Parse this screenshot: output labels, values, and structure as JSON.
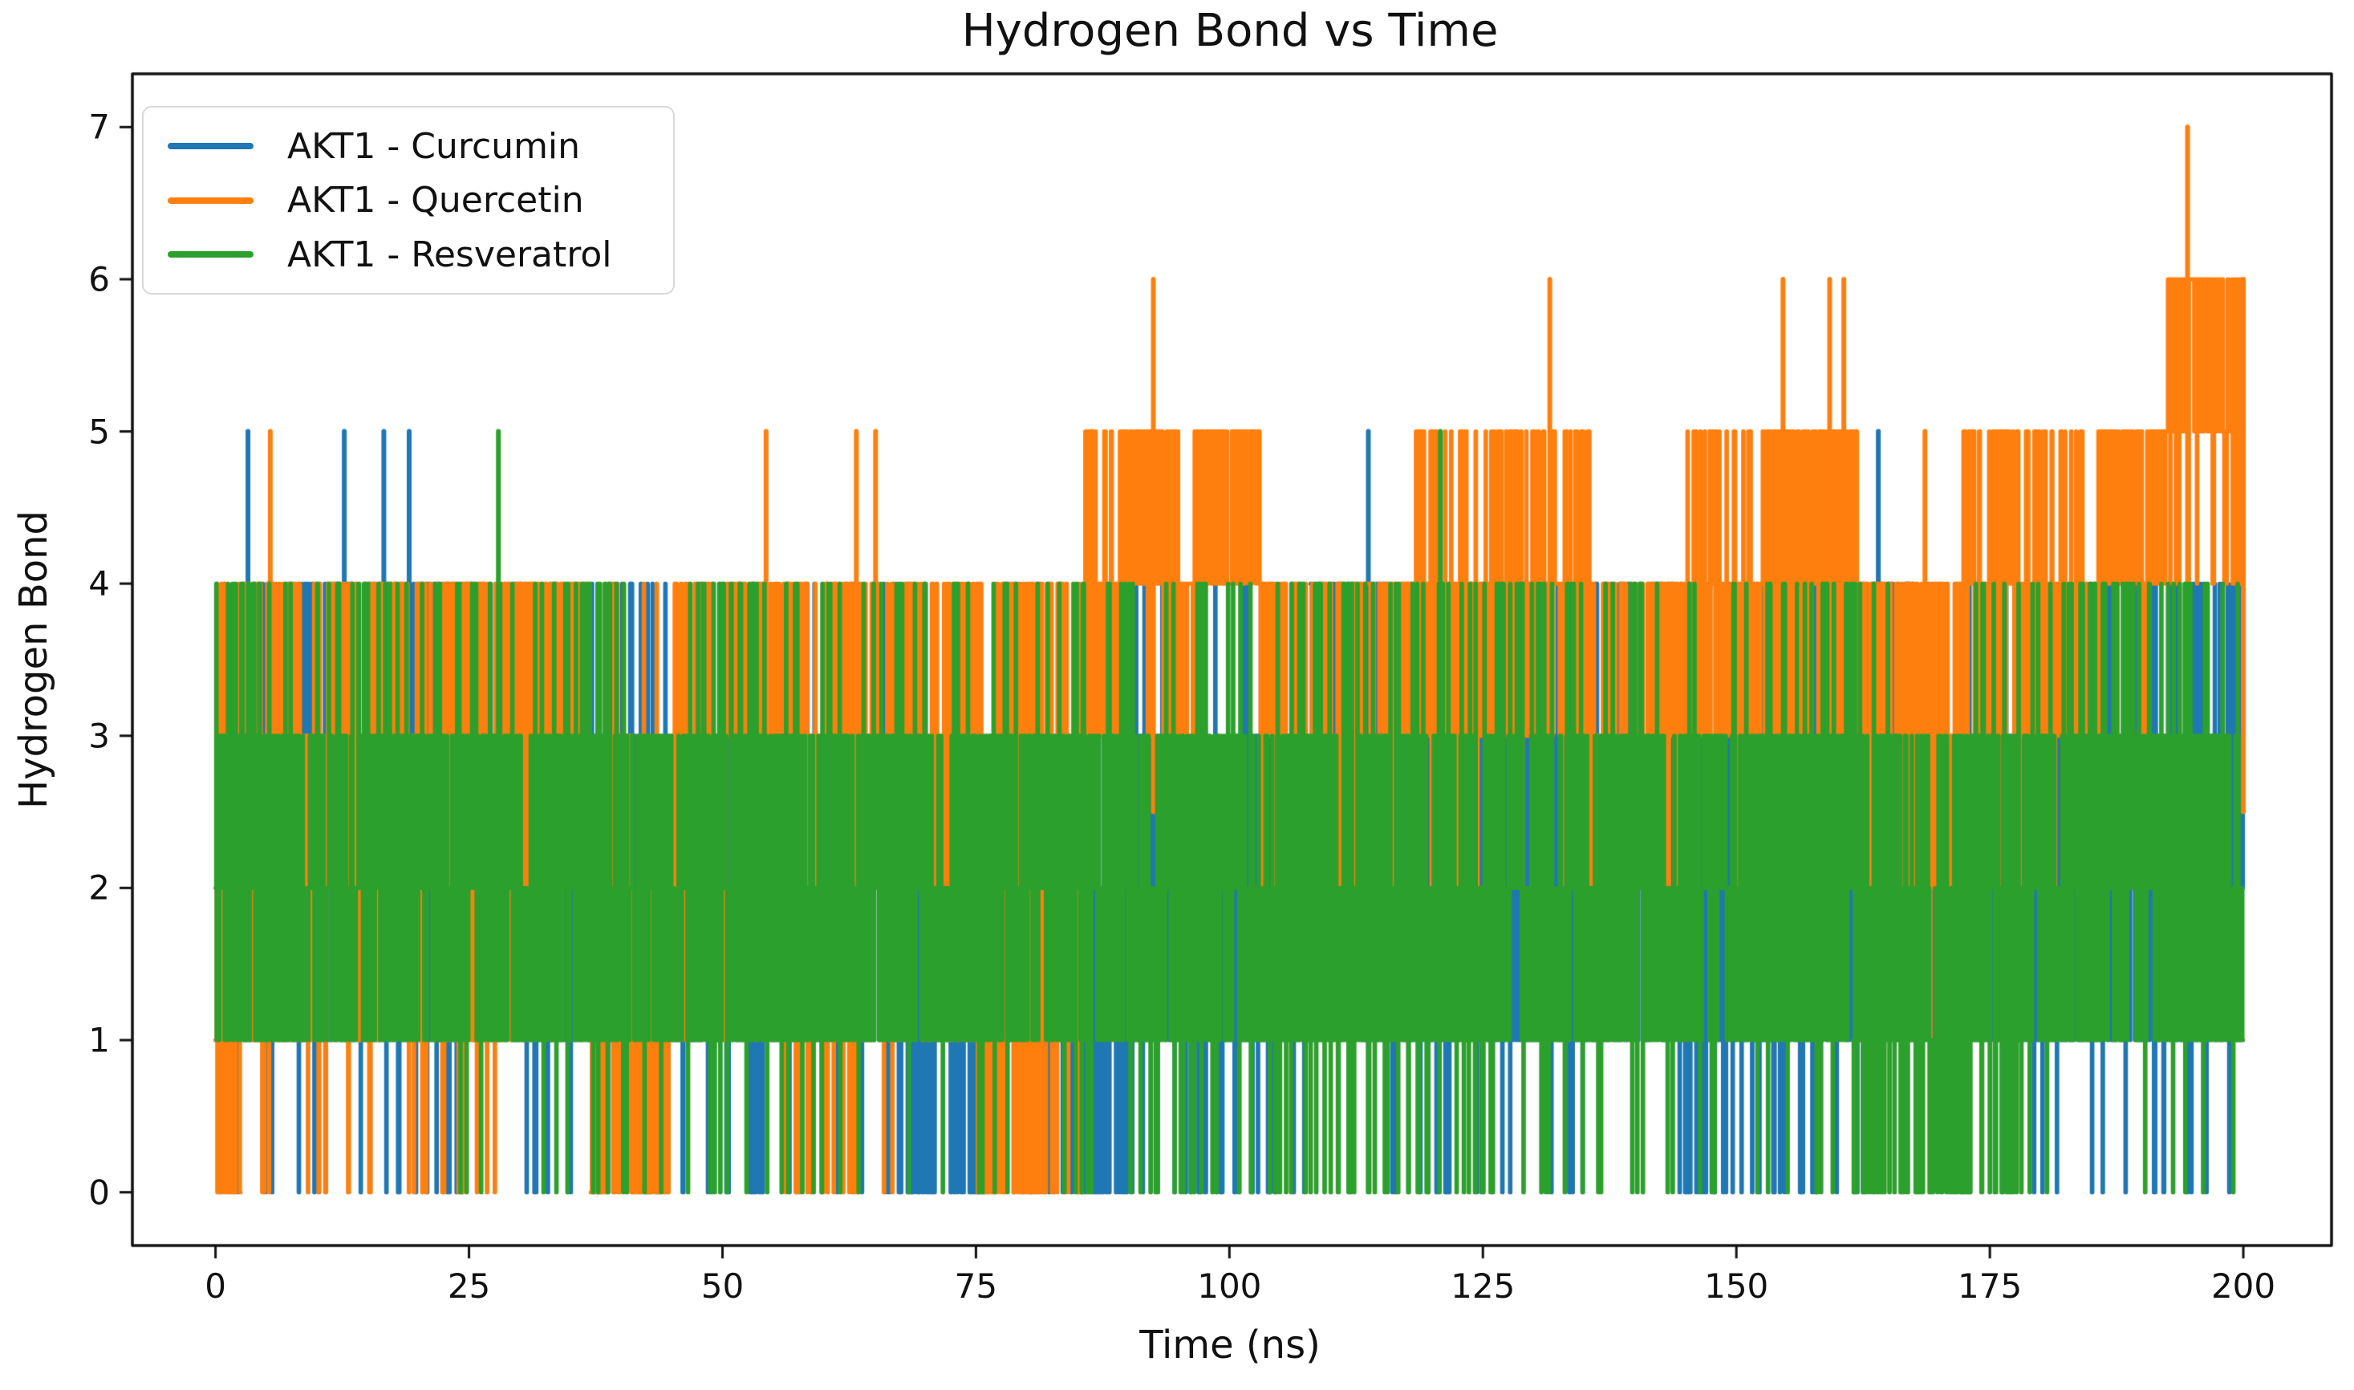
{
  "chart_data": {
    "type": "line",
    "title": "Hydrogen Bond vs Time",
    "xlabel": "Time (ns)",
    "ylabel": "Hydrogen Bond",
    "x_ticks": [
      0,
      25,
      50,
      75,
      100,
      125,
      150,
      175,
      200
    ],
    "y_ticks": [
      0,
      1,
      2,
      3,
      4,
      5,
      6,
      7
    ],
    "xlim": [
      -8.2,
      208.7
    ],
    "ylim": [
      -0.35,
      7.35
    ],
    "grid": false,
    "legend_position": "upper-left",
    "render_seed": 1337,
    "series": [
      {
        "name": "AKT1 - Curcumin",
        "color": "#1f77b4",
        "segments": [
          [
            0,
            25,
            {
              "0": 0.5,
              "1": 3,
              "2": 3,
              "3": 3,
              "4": 2.5
            }
          ],
          [
            25,
            40,
            {
              "0": 0.25,
              "1": 2.5,
              "2": 3,
              "3": 2.5,
              "4": 0.7
            }
          ],
          [
            40,
            48,
            {
              "0": 1.2,
              "1": 3,
              "2": 3,
              "3": 2,
              "4": 0.5
            }
          ],
          [
            48,
            66,
            {
              "0": 0.5,
              "1": 2.5,
              "2": 3,
              "3": 2.5,
              "4": 0.6
            }
          ],
          [
            66,
            76,
            {
              "0": 2.5,
              "1": 3,
              "2": 2.5,
              "3": 1.5,
              "4": 0.3
            }
          ],
          [
            76,
            85,
            {
              "0": 0.3,
              "1": 2.5,
              "2": 3,
              "3": 2,
              "4": 0.4
            }
          ],
          [
            85,
            90.5,
            {
              "0": 2.5,
              "1": 3,
              "2": 2.5,
              "3": 1.5,
              "4": 0.3
            }
          ],
          [
            90.5,
            99,
            {
              "0": 0.8,
              "1": 2.5,
              "2": 3,
              "3": 2,
              "4": 0.5
            }
          ],
          [
            99,
            108,
            {
              "0": 0.8,
              "1": 2.5,
              "2": 3,
              "3": 2,
              "4": 0.8
            }
          ],
          [
            108,
            116,
            {
              "1": 2,
              "2": 2.5,
              "3": 3,
              "4": 2.8
            }
          ],
          [
            116,
            122,
            {
              "0": 1.0,
              "1": 2.5,
              "2": 3,
              "3": 2.5,
              "4": 1.5
            }
          ],
          [
            122,
            136,
            {
              "0": 0.2,
              "1": 2.5,
              "2": 3,
              "3": 2.5,
              "4": 0.8
            }
          ],
          [
            136,
            144,
            {
              "1": 2,
              "2": 2.5,
              "3": 3,
              "4": 2.8
            }
          ],
          [
            144,
            158,
            {
              "0": 0.9,
              "1": 2.5,
              "2": 3,
              "3": 2,
              "4": 0.6
            }
          ],
          [
            158,
            169,
            {
              "0": 0.2,
              "1": 2,
              "2": 2.5,
              "3": 2.5,
              "4": 2.2
            }
          ],
          [
            169,
            186,
            {
              "0": 0.25,
              "1": 2.5,
              "2": 3,
              "3": 2.5,
              "4": 0.5
            }
          ],
          [
            186,
            200,
            {
              "0": 0.5,
              "1": 2.5,
              "2": 3,
              "3": 2.5,
              "4": 1.2
            }
          ]
        ],
        "spikes": [
          [
            3.2,
            5
          ],
          [
            12.7,
            5
          ],
          [
            16.6,
            5
          ],
          [
            19.1,
            5
          ],
          [
            113.7,
            5
          ],
          [
            164,
            5
          ]
        ]
      },
      {
        "name": "AKT1 - Quercetin",
        "color": "#ff7f0e",
        "segments": [
          [
            0,
            2.5,
            {
              "0": 3,
              "1": 3,
              "2": 1,
              "3": 0.8,
              "4": 0.8
            }
          ],
          [
            2.5,
            8,
            {
              "0": 0.5,
              "1": 1.5,
              "2": 2.5,
              "3": 2.5,
              "4": 2
            }
          ],
          [
            8,
            29,
            {
              "0": 0.4,
              "1": 1.5,
              "2": 2.5,
              "3": 3,
              "4": 2.5
            }
          ],
          [
            29,
            37,
            {
              "1": 0.4,
              "2": 2,
              "3": 3,
              "4": 2.8
            }
          ],
          [
            37,
            45,
            {
              "0": 2.8,
              "1": 2.5,
              "2": 1.5,
              "3": 1.5,
              "4": 1.5
            }
          ],
          [
            45,
            56,
            {
              "1": 1,
              "2": 2.5,
              "3": 3,
              "4": 2
            }
          ],
          [
            56,
            67,
            {
              "0": 0.6,
              "1": 1.5,
              "2": 2.5,
              "3": 2.5,
              "4": 1.8
            }
          ],
          [
            67,
            75,
            {
              "1": 1.2,
              "2": 2.5,
              "3": 2.8,
              "4": 1.5
            }
          ],
          [
            75,
            85.5,
            {
              "0": 2.2,
              "1": 2,
              "2": 1.5,
              "3": 2,
              "4": 2.2
            }
          ],
          [
            85.5,
            90.5,
            {
              "3": 2,
              "4": 2.8,
              "5": 1.5
            }
          ],
          [
            90.5,
            95,
            {
              "3": 0.5,
              "4": 2.5,
              "5": 2.5
            }
          ],
          [
            95,
            96.5,
            {
              "3": 2,
              "4": 2
            }
          ],
          [
            96.5,
            103,
            {
              "4": 2,
              "5": 2.8
            }
          ],
          [
            103,
            118,
            {
              "1": 0.3,
              "2": 1.5,
              "3": 2.8,
              "4": 2.5
            }
          ],
          [
            118,
            127,
            {
              "2": 0.5,
              "3": 2.2,
              "4": 2.6,
              "5": 1.2
            }
          ],
          [
            127,
            136,
            {
              "2": 0.4,
              "3": 2,
              "4": 2.6,
              "5": 1.4
            }
          ],
          [
            136,
            145,
            {
              "2": 1.5,
              "3": 2.8,
              "4": 2.2
            }
          ],
          [
            145,
            153,
            {
              "2": 0.5,
              "3": 2.2,
              "4": 2.5,
              "5": 1.0
            }
          ],
          [
            153,
            162,
            {
              "3": 1.5,
              "4": 2.6,
              "5": 2.2
            }
          ],
          [
            162,
            172,
            {
              "1": 0.4,
              "2": 1.5,
              "3": 2.6,
              "4": 2.0
            }
          ],
          [
            172,
            186,
            {
              "2": 0.4,
              "3": 2.2,
              "4": 2.6,
              "5": 1.3
            }
          ],
          [
            186,
            192.5,
            {
              "3": 0.6,
              "4": 2.6,
              "5": 2.2
            }
          ],
          [
            192.5,
            199,
            {
              "4": 0.4,
              "5": 2.6,
              "6": 2.2
            }
          ],
          [
            199,
            200,
            {
              "4": 1,
              "5": 2,
              "6": 1.5
            }
          ]
        ],
        "spikes": [
          [
            5.4,
            5
          ],
          [
            54.3,
            5
          ],
          [
            63.2,
            5
          ],
          [
            65.1,
            5
          ],
          [
            86.4,
            5
          ],
          [
            92.5,
            6
          ],
          [
            131.6,
            6
          ],
          [
            154.6,
            6
          ],
          [
            159.2,
            6
          ],
          [
            160.6,
            6
          ],
          [
            168.6,
            5
          ],
          [
            194.5,
            7
          ],
          [
            200,
            6
          ]
        ]
      },
      {
        "name": "AKT1 - Resveratrol",
        "color": "#2ca02c",
        "segments": [
          [
            0,
            21,
            {
              "1": 3,
              "2": 3,
              "3": 2.5,
              "4": 0.8
            }
          ],
          [
            21,
            90,
            {
              "0": 0.35,
              "1": 3,
              "2": 3,
              "3": 2.5,
              "4": 0.8
            }
          ],
          [
            90,
            122,
            {
              "0": 0.8,
              "1": 3,
              "2": 3,
              "3": 2.2,
              "4": 0.8
            }
          ],
          [
            122,
            141,
            {
              "0": 0.6,
              "1": 3,
              "2": 3,
              "3": 2.4,
              "4": 0.7
            }
          ],
          [
            141,
            161.5,
            {
              "0": 0.35,
              "1": 3,
              "2": 3,
              "3": 2.2,
              "4": 0.5
            }
          ],
          [
            161.5,
            177.7,
            {
              "0": 2.6,
              "1": 3,
              "2": 2.6,
              "3": 1.8,
              "4": 0.25
            }
          ],
          [
            177.7,
            200,
            {
              "0": 0.2,
              "1": 3,
              "2": 3,
              "3": 2.5,
              "4": 1.0
            }
          ]
        ],
        "spikes": [
          [
            27.9,
            5
          ],
          [
            120.8,
            5
          ]
        ]
      }
    ]
  }
}
